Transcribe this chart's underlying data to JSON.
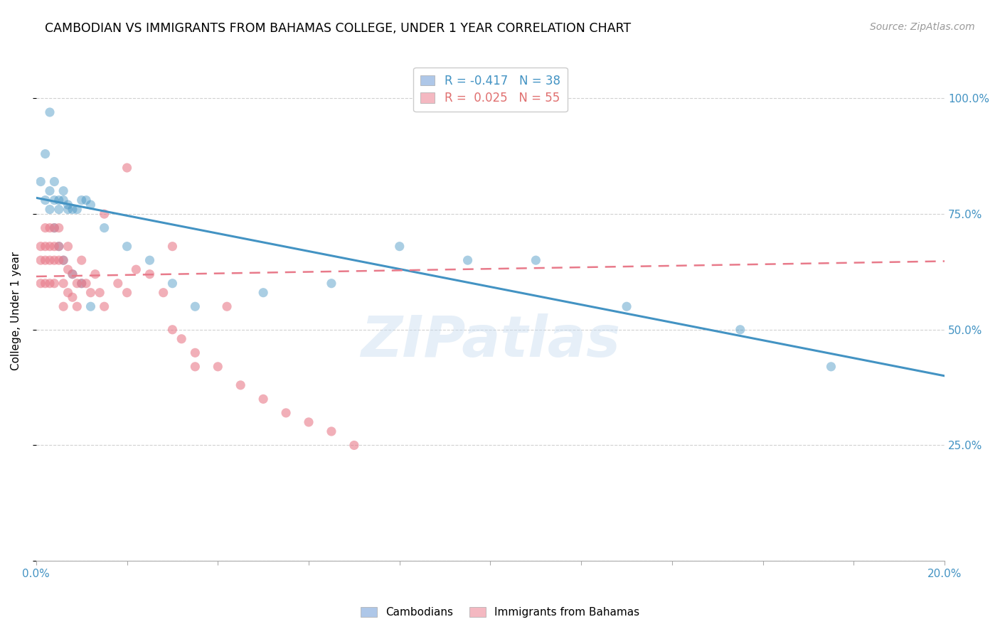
{
  "title": "CAMBODIAN VS IMMIGRANTS FROM BAHAMAS COLLEGE, UNDER 1 YEAR CORRELATION CHART",
  "source": "Source: ZipAtlas.com",
  "ylabel": "College, Under 1 year",
  "right_yticks": [
    "100.0%",
    "75.0%",
    "50.0%",
    "25.0%"
  ],
  "right_ytick_vals": [
    1.0,
    0.75,
    0.5,
    0.25
  ],
  "legend_labels": [
    "Cambodians",
    "Immigrants from Bahamas"
  ],
  "blue_color": "#4393c3",
  "pink_color": "#e87a8a",
  "watermark": "ZIPatlas",
  "cambodian_x": [
    0.001,
    0.002,
    0.002,
    0.003,
    0.003,
    0.004,
    0.004,
    0.005,
    0.005,
    0.006,
    0.006,
    0.007,
    0.007,
    0.008,
    0.009,
    0.01,
    0.011,
    0.012,
    0.015,
    0.02,
    0.025,
    0.03,
    0.035,
    0.05,
    0.065,
    0.08,
    0.095,
    0.11,
    0.13,
    0.155,
    0.175,
    0.003,
    0.004,
    0.005,
    0.006,
    0.008,
    0.01,
    0.012
  ],
  "cambodian_y": [
    0.82,
    0.88,
    0.78,
    0.8,
    0.76,
    0.82,
    0.78,
    0.78,
    0.76,
    0.8,
    0.78,
    0.77,
    0.76,
    0.76,
    0.76,
    0.78,
    0.78,
    0.77,
    0.72,
    0.68,
    0.65,
    0.6,
    0.55,
    0.58,
    0.6,
    0.68,
    0.65,
    0.65,
    0.55,
    0.5,
    0.42,
    0.97,
    0.72,
    0.68,
    0.65,
    0.62,
    0.6,
    0.55
  ],
  "bahamas_x": [
    0.001,
    0.001,
    0.001,
    0.002,
    0.002,
    0.002,
    0.002,
    0.003,
    0.003,
    0.003,
    0.003,
    0.004,
    0.004,
    0.004,
    0.004,
    0.005,
    0.005,
    0.005,
    0.006,
    0.006,
    0.006,
    0.007,
    0.007,
    0.007,
    0.008,
    0.008,
    0.009,
    0.009,
    0.01,
    0.01,
    0.011,
    0.012,
    0.013,
    0.014,
    0.015,
    0.018,
    0.02,
    0.022,
    0.025,
    0.028,
    0.03,
    0.032,
    0.035,
    0.04,
    0.045,
    0.05,
    0.055,
    0.06,
    0.065,
    0.07,
    0.015,
    0.02,
    0.03,
    0.035,
    0.042
  ],
  "bahamas_y": [
    0.68,
    0.65,
    0.6,
    0.72,
    0.68,
    0.65,
    0.6,
    0.72,
    0.68,
    0.65,
    0.6,
    0.72,
    0.68,
    0.65,
    0.6,
    0.72,
    0.68,
    0.65,
    0.65,
    0.6,
    0.55,
    0.68,
    0.63,
    0.58,
    0.62,
    0.57,
    0.6,
    0.55,
    0.65,
    0.6,
    0.6,
    0.58,
    0.62,
    0.58,
    0.55,
    0.6,
    0.58,
    0.63,
    0.62,
    0.58,
    0.5,
    0.48,
    0.45,
    0.42,
    0.38,
    0.35,
    0.32,
    0.3,
    0.28,
    0.25,
    0.75,
    0.85,
    0.68,
    0.42,
    0.55
  ],
  "blue_trend_x": [
    0.0,
    0.2
  ],
  "blue_trend_y": [
    0.785,
    0.4
  ],
  "pink_trend_x": [
    0.0,
    0.2
  ],
  "pink_trend_y": [
    0.615,
    0.648
  ],
  "xlim": [
    0.0,
    0.2
  ],
  "ylim": [
    0.0,
    1.08
  ]
}
